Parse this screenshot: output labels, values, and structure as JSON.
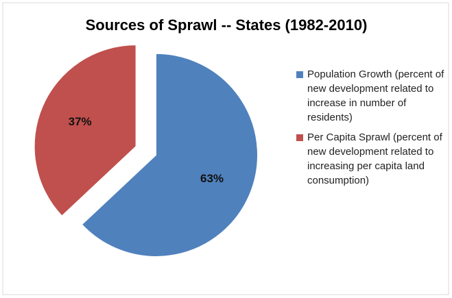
{
  "chart_data": {
    "type": "pie",
    "title": "Sources of Sprawl -- States (1982-2010)",
    "categories": [
      "Population Growth (percent of new development related to increase in number of residents)",
      "Per Capita Sprawl (percent of new development related to increasing per capita land consumption)"
    ],
    "values": [
      63,
      37
    ],
    "value_labels": [
      "63%",
      "37%"
    ],
    "colors": [
      "#4f81bd",
      "#c0504d"
    ],
    "legend": "right"
  }
}
